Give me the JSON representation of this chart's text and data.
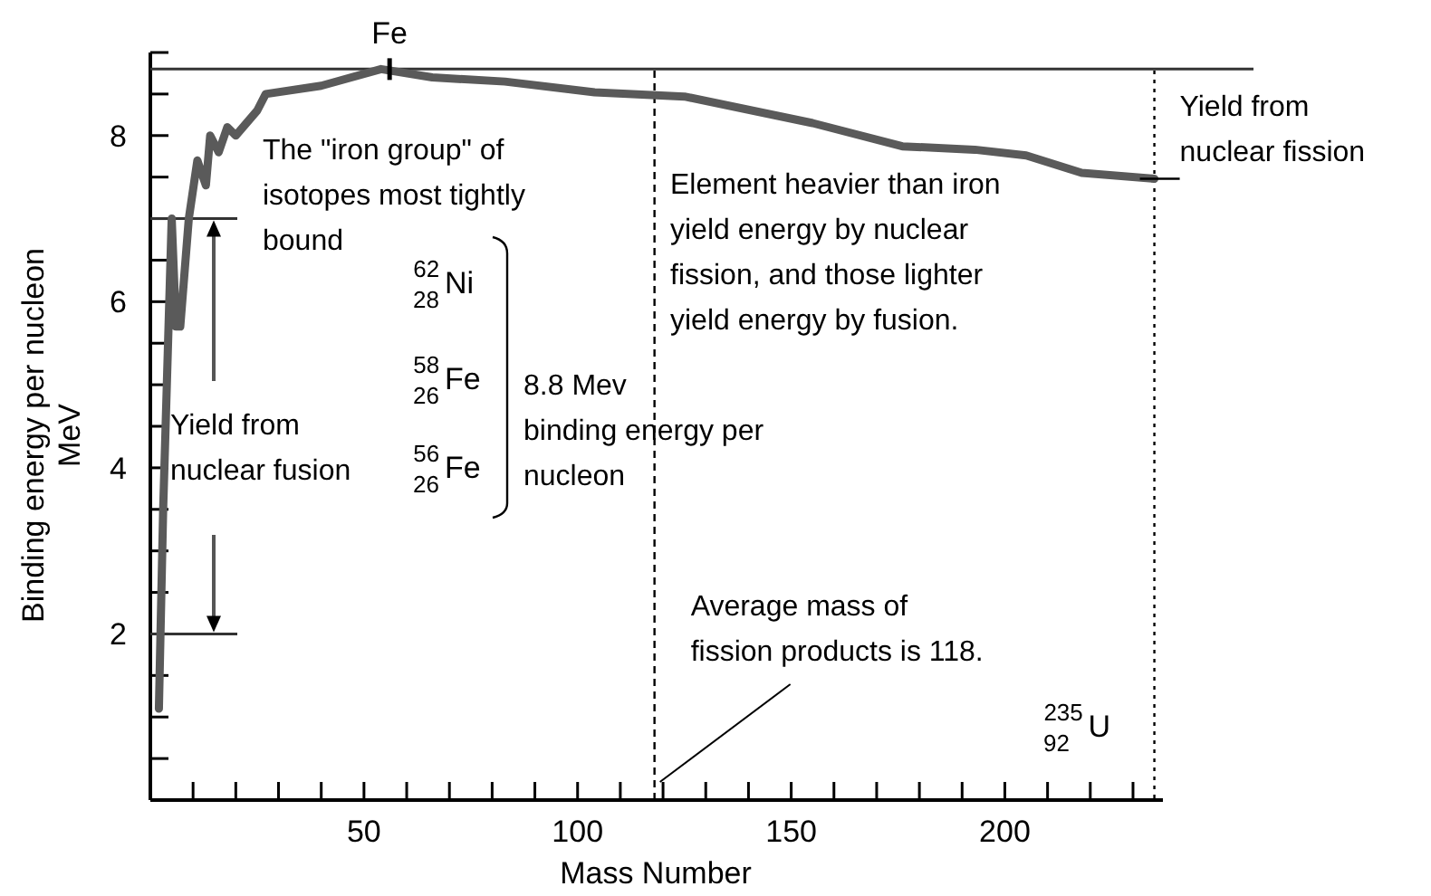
{
  "chart_data": {
    "type": "line",
    "xlabel": "Mass Number",
    "ylabel": "Binding energy per nucleon\nMeV",
    "x": [
      2,
      3,
      5,
      6,
      7,
      9,
      11,
      13,
      14,
      16,
      18,
      20,
      25,
      27,
      40,
      54,
      66,
      83,
      104,
      125,
      155,
      176,
      193,
      205,
      218,
      235
    ],
    "series": [
      {
        "color": "#5a5a5a",
        "values": [
          1.1,
          3.5,
          7.0,
          5.7,
          5.7,
          7.0,
          7.7,
          7.4,
          8.0,
          7.8,
          8.1,
          8.0,
          8.3,
          8.5,
          8.6,
          8.8,
          8.7,
          8.65,
          8.52,
          8.47,
          8.15,
          7.87,
          7.83,
          7.76,
          7.55,
          7.48
        ]
      }
    ],
    "xlim": [
      0,
      237
    ],
    "ylim": [
      0,
      9
    ],
    "xticks": [
      {
        "value": 10,
        "label": null
      },
      {
        "value": 20,
        "label": null
      },
      {
        "value": 30,
        "label": null
      },
      {
        "value": 40,
        "label": null
      },
      50,
      {
        "value": 60,
        "label": null
      },
      {
        "value": 70,
        "label": null
      },
      {
        "value": 80,
        "label": null
      },
      {
        "value": 90,
        "label": null
      },
      100,
      {
        "value": 110,
        "label": null
      },
      {
        "value": 120,
        "label": null
      },
      {
        "value": 130,
        "label": null
      },
      {
        "value": 140,
        "label": null
      },
      150,
      {
        "value": 160,
        "label": null
      },
      {
        "value": 170,
        "label": null
      },
      {
        "value": 180,
        "label": null
      },
      {
        "value": 190,
        "label": null
      },
      200,
      {
        "value": 210,
        "label": null
      },
      {
        "value": 220,
        "label": null
      },
      {
        "value": 230,
        "label": null
      }
    ],
    "yticks": [
      {
        "value": 0.5,
        "label": null
      },
      {
        "value": 1,
        "label": null
      },
      {
        "value": 1.5,
        "label": null
      },
      2,
      {
        "value": 2.5,
        "label": null
      },
      {
        "value": 3,
        "label": null
      },
      {
        "value": 3.5,
        "label": null
      },
      4,
      {
        "value": 4.5,
        "label": null
      },
      {
        "value": 5,
        "label": null
      },
      {
        "value": 5.5,
        "label": null
      },
      6,
      {
        "value": 6.5,
        "label": null
      },
      {
        "value": 7,
        "label": null
      },
      {
        "value": 7.5,
        "label": null
      },
      8,
      {
        "value": 8.5,
        "label": null
      },
      {
        "value": 9,
        "label": null
      }
    ],
    "grid": false,
    "marker": "none",
    "line_style": "solid",
    "ref_lines": [
      {
        "axis": "x",
        "value": 118,
        "label": "Average mass of\nfission products is 118.",
        "line_style": "dashed"
      },
      {
        "axis": "x",
        "value": 235,
        "label": null,
        "line_style": "dotted"
      },
      {
        "axis": "y",
        "value": 2,
        "label": null
      },
      {
        "axis": "y",
        "value": 7,
        "label": null
      },
      {
        "axis": "y",
        "value": 8.8,
        "label": null
      }
    ],
    "annotations": [
      {
        "text": "Fe",
        "x": 56,
        "y": 8.8
      },
      "The \"iron group\" of\nisotopes most tightly\nbound",
      "$^{62}$$_{28}$Ni",
      "$^{58}$$_{26}$Fe",
      "$^{56}$$_{26}$Fe",
      "8.8 Mev\nbinding energy per\nnucleon",
      "Element heavier than iron\nyield energy by nuclear\nfission, and those lighter\nyield energy by fusion.",
      "$^{235}$$_{92}$U",
      "Yield from\nnuclear fusion",
      {
        "text": "Yield from\nnuclear fission",
        "x": 235,
        "y": 7.48
      }
    ]
  }
}
